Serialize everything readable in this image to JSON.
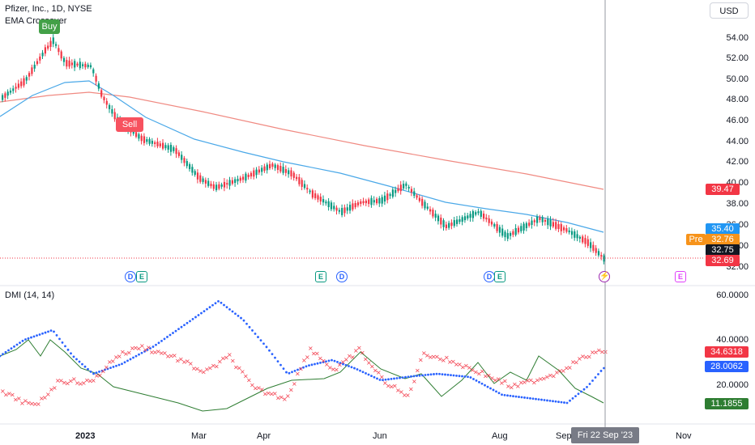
{
  "header": {
    "symbol_title": "Pfizer, Inc., 1D, NYSE",
    "indicator_name": "EMA Crossover",
    "currency_button": "USD",
    "dmi_label": "DMI (14, 14)"
  },
  "signals": {
    "buy_label": "Buy",
    "sell_label": "Sell"
  },
  "price_axis": {
    "ticks": [
      "54.00",
      "52.00",
      "50.00",
      "48.00",
      "46.00",
      "44.00",
      "42.00",
      "40.00",
      "38.00",
      "36.00",
      "34.00",
      "32.00"
    ]
  },
  "price_labels": {
    "ema_slow": "39.47",
    "ema_fast": "35.40",
    "pre_tag": "Pre",
    "pre_value": "32.76",
    "last_price": "32.75",
    "close_red": "32.69"
  },
  "dmi_axis": {
    "ticks": [
      "60.0000",
      "40.0000",
      "20.0000"
    ]
  },
  "dmi_labels": {
    "plus_di": "34.6318",
    "minus_di": "28.0062",
    "adx": "11.1855"
  },
  "time_axis": {
    "ticks": [
      "2023",
      "Mar",
      "Apr",
      "Jun",
      "Aug",
      "Sep",
      "Nov"
    ],
    "cursor_label": "Fri 22 Sep '23"
  },
  "events": [
    "D",
    "E",
    "E",
    "D",
    "D",
    "E",
    "lightning",
    "E"
  ],
  "colors": {
    "up": "#089981",
    "down": "#f23645",
    "ema_fast": "#4aa8e8",
    "ema_slow": "#f08a82",
    "plus_di": "#f23645",
    "minus_di": "#2962ff",
    "adx": "#2e7d32",
    "buy": "#43a047",
    "sell": "#f7525f"
  }
}
